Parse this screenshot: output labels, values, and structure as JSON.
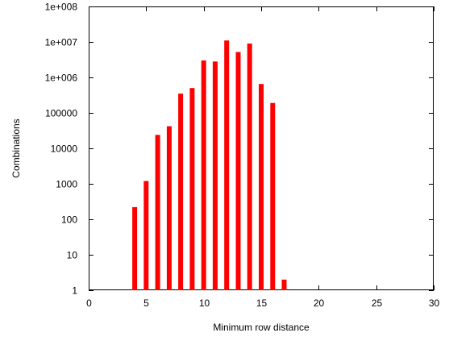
{
  "chart_data": {
    "type": "bar",
    "title": "",
    "xlabel": "Minimum row distance",
    "ylabel": "Combinations",
    "xlim": [
      0,
      30
    ],
    "ylim": [
      1,
      100000000
    ],
    "yscale": "log",
    "grid": false,
    "legend": "none",
    "bar_color": "#ff0000",
    "x_ticks": [
      {
        "value": 0,
        "label": "0"
      },
      {
        "value": 5,
        "label": "5"
      },
      {
        "value": 10,
        "label": "10"
      },
      {
        "value": 15,
        "label": "15"
      },
      {
        "value": 20,
        "label": "20"
      },
      {
        "value": 25,
        "label": "25"
      },
      {
        "value": 30,
        "label": "30"
      }
    ],
    "y_ticks": [
      {
        "value": 1,
        "label": "1"
      },
      {
        "value": 10,
        "label": "10"
      },
      {
        "value": 100,
        "label": "100"
      },
      {
        "value": 1000,
        "label": "1000"
      },
      {
        "value": 10000,
        "label": "10000"
      },
      {
        "value": 100000,
        "label": "100000"
      },
      {
        "value": 1000000,
        "label": "1e+006"
      },
      {
        "value": 10000000,
        "label": "1e+007"
      },
      {
        "value": 100000000,
        "label": "1e+008"
      }
    ],
    "x": [
      4,
      5,
      6,
      7,
      8,
      9,
      10,
      11,
      12,
      13,
      14,
      15,
      16,
      17
    ],
    "values": [
      220,
      1200,
      24000,
      42000,
      350000,
      500000,
      3000000,
      2800000,
      11000000,
      5200000,
      9000000,
      650000,
      190000,
      2
    ]
  }
}
